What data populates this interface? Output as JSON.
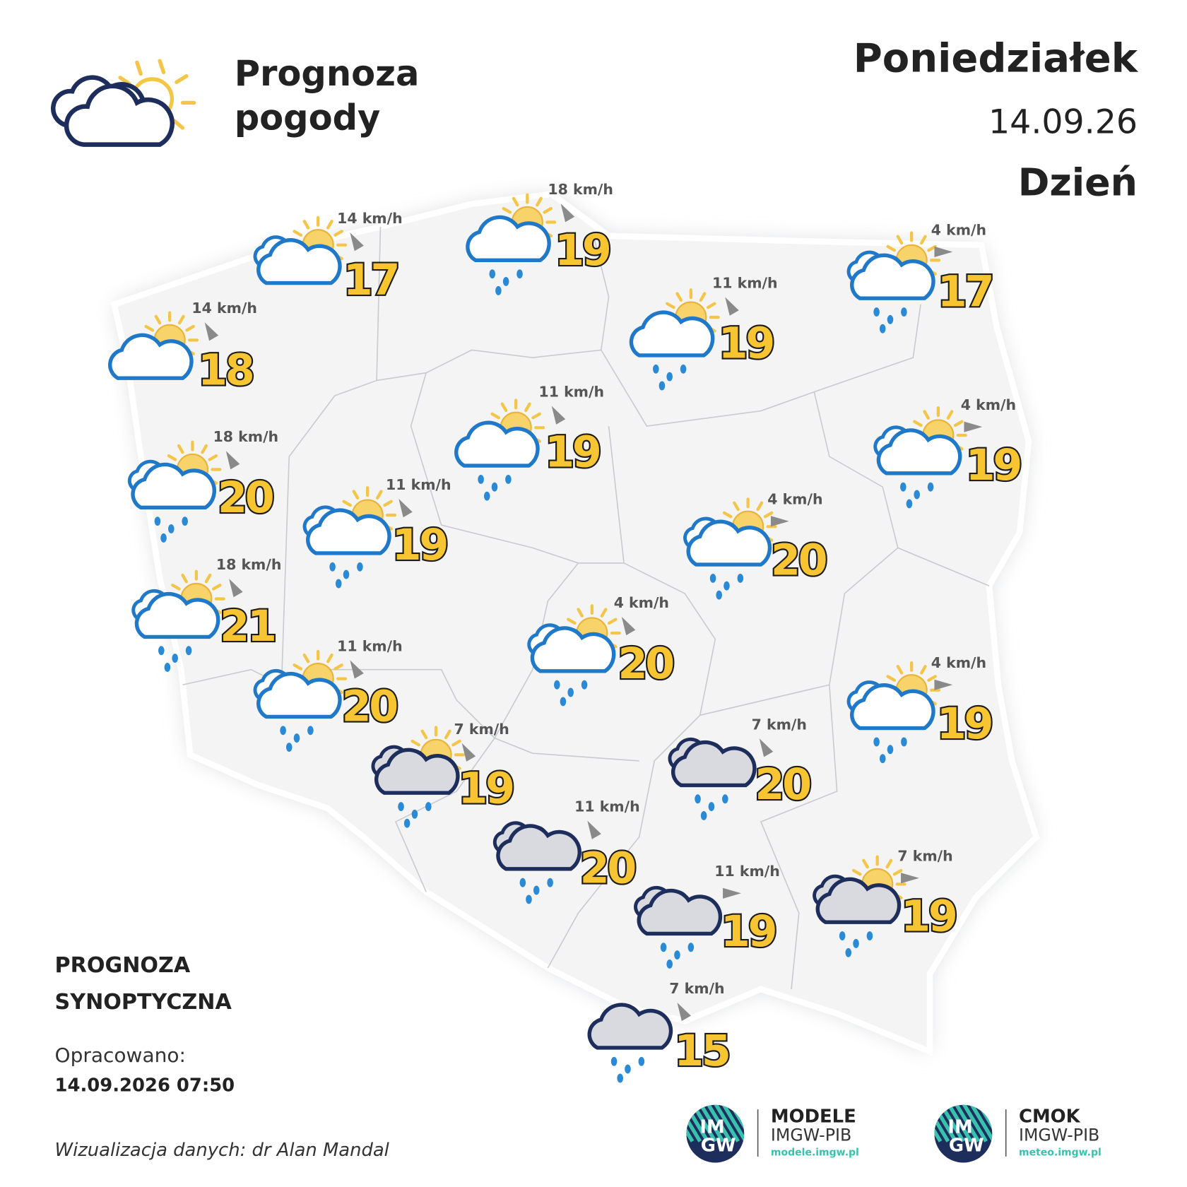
{
  "header": {
    "title_line1": "Prognoza",
    "title_line2": "pogody",
    "day": "Poniedziałek",
    "date": "14.09.26",
    "period": "Dzień"
  },
  "stations": [
    {
      "temperature": 17,
      "wind": "14 km/h"
    },
    {
      "temperature": 19,
      "wind": "18 km/h"
    },
    {
      "temperature": 17,
      "wind": "4 km/h"
    },
    {
      "temperature": 18,
      "wind": "14 km/h"
    },
    {
      "temperature": 19,
      "wind": "11 km/h"
    },
    {
      "temperature": 19,
      "wind": "11 km/h"
    },
    {
      "temperature": 19,
      "wind": "4 km/h"
    },
    {
      "temperature": 20,
      "wind": "18 km/h"
    },
    {
      "temperature": 19,
      "wind": "11 km/h"
    },
    {
      "temperature": 20,
      "wind": "4 km/h"
    },
    {
      "temperature": 21,
      "wind": "18 km/h"
    },
    {
      "temperature": 20,
      "wind": "4 km/h"
    },
    {
      "temperature": 20,
      "wind": "11 km/h"
    },
    {
      "temperature": 19,
      "wind": "4 km/h"
    },
    {
      "temperature": 19,
      "wind": "7 km/h"
    },
    {
      "temperature": 20,
      "wind": "7 km/h"
    },
    {
      "temperature": 20,
      "wind": "11 km/h"
    },
    {
      "temperature": 19,
      "wind": "11 km/h"
    },
    {
      "temperature": 19,
      "wind": "7 km/h"
    },
    {
      "temperature": 15,
      "wind": "7 km/h"
    }
  ],
  "footer": {
    "label_line1": "PROGNOZA",
    "label_line2": "SYNOPTYCZNA",
    "prepared_label": "Opracowano:",
    "prepared_at": "14.09.2026 07:50",
    "credit": "Wizualizacja danych: dr Alan Mandal"
  },
  "logos": [
    {
      "mark_top": "IM",
      "mark_bottom": "GW",
      "name": "MODELE",
      "org": "IMGW-PIB",
      "url": "modele.imgw.pl"
    },
    {
      "mark_top": "IM",
      "mark_bottom": "GW",
      "name": "CMOK",
      "org": "IMGW-PIB",
      "url": "meteo.imgw.pl"
    }
  ]
}
